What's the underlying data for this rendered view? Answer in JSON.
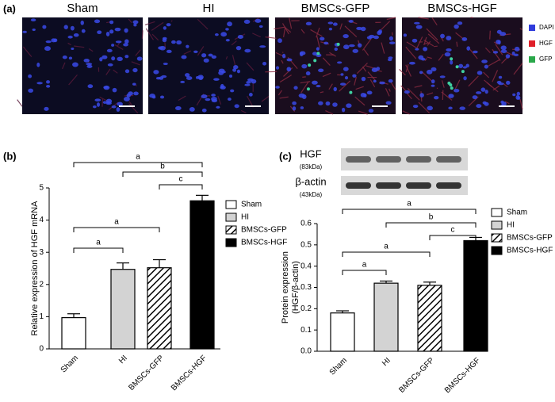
{
  "panels": {
    "a": {
      "label": "(a)",
      "images": [
        "Sham",
        "HI",
        "BMSCs-GFP",
        "BMSCs-HGF"
      ],
      "legend": [
        {
          "name": "DAPI",
          "color": "#2f3bdc"
        },
        {
          "name": "HGF",
          "color": "#e0202a"
        },
        {
          "name": "GFP",
          "color": "#2aa84a"
        }
      ]
    },
    "b": {
      "label": "(b)"
    },
    "c": {
      "label": "(c)",
      "blots": [
        {
          "name": "HGF",
          "size": "(83kDa)"
        },
        {
          "name": "β-actin",
          "size": "(43kDa)"
        }
      ]
    }
  },
  "chart_data": [
    {
      "type": "bar",
      "y_label": "Relative expression of HGF mRNA",
      "categories": [
        "Sham",
        "HI",
        "BMSCs-GFP",
        "BMSCs-HGF"
      ],
      "values": [
        0.97,
        2.47,
        2.52,
        4.6
      ],
      "errors": [
        0.12,
        0.2,
        0.25,
        0.17
      ],
      "colors": [
        "#ffffff",
        "#d3d3d3",
        "hatch",
        "#000000"
      ],
      "ylim": [
        0,
        5
      ],
      "yticks": [
        0,
        1,
        2,
        3,
        4,
        5
      ],
      "legend": "right",
      "brackets": [
        {
          "from": 0,
          "to": 3,
          "label": "a"
        },
        {
          "from": 1,
          "to": 3,
          "label": "b"
        },
        {
          "from": 2,
          "to": 3,
          "label": "c"
        },
        {
          "from": 0,
          "to": 2,
          "label": "a"
        },
        {
          "from": 0,
          "to": 1,
          "label": "a"
        }
      ]
    },
    {
      "type": "bar",
      "y_label": [
        "Protein expression",
        "(HGF/β-actin)"
      ],
      "categories": [
        "Sham",
        "HI",
        "BMSCs-GFP",
        "BMSCs-HGF"
      ],
      "values": [
        0.18,
        0.32,
        0.31,
        0.52
      ],
      "errors": [
        0.01,
        0.01,
        0.015,
        0.015
      ],
      "colors": [
        "#ffffff",
        "#d3d3d3",
        "hatch",
        "#000000"
      ],
      "ylim": [
        0,
        0.6
      ],
      "yticks": [
        {
          "value": 0,
          "label": "0.0"
        },
        {
          "value": 0.1,
          "label": "0.1"
        },
        {
          "value": 0.2,
          "label": "0.2"
        },
        {
          "value": 0.3,
          "label": "0.3"
        },
        {
          "value": 0.4,
          "label": "0.4"
        },
        {
          "value": 0.5,
          "label": "0.5"
        },
        {
          "value": 0.6,
          "label": "0.6"
        }
      ],
      "legend": "right",
      "brackets": [
        {
          "from": 0,
          "to": 3,
          "label": "a"
        },
        {
          "from": 1,
          "to": 3,
          "label": "b"
        },
        {
          "from": 2,
          "to": 3,
          "label": "c"
        },
        {
          "from": 0,
          "to": 2,
          "label": "a"
        },
        {
          "from": 0,
          "to": 1,
          "label": "a"
        }
      ]
    }
  ]
}
